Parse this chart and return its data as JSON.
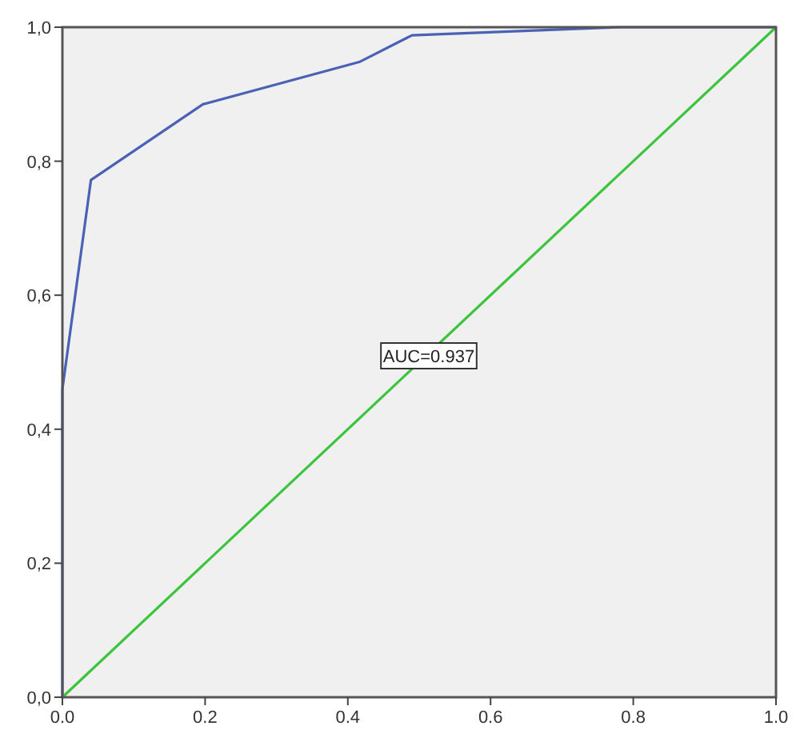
{
  "chart_data": {
    "type": "line",
    "xlim": [
      0,
      1
    ],
    "ylim": [
      0,
      1
    ],
    "xticks": [
      {
        "value": 0,
        "label": "0.0"
      },
      {
        "value": 0.2,
        "label": "0.2"
      },
      {
        "value": 0.4,
        "label": "0.4"
      },
      {
        "value": 0.6,
        "label": "0.6"
      },
      {
        "value": 0.8,
        "label": "0.8"
      },
      {
        "value": 1,
        "label": "1.0"
      }
    ],
    "yticks": [
      {
        "value": 0,
        "label": "0,0"
      },
      {
        "value": 0.2,
        "label": "0,2"
      },
      {
        "value": 0.4,
        "label": "0,4"
      },
      {
        "value": 0.6,
        "label": "0,6"
      },
      {
        "value": 0.8,
        "label": "0,8"
      },
      {
        "value": 1,
        "label": "1,0"
      }
    ],
    "series": [
      {
        "color": "#4a62b5",
        "x": [
          0,
          0,
          0.04,
          0.197,
          0.416,
          0.49,
          0.78,
          1
        ],
        "values": [
          0,
          0.46,
          0.772,
          0.885,
          0.948,
          0.988,
          1,
          1
        ]
      },
      {
        "color": "#3cc43c",
        "x": [
          0,
          1
        ],
        "values": [
          0,
          1
        ]
      }
    ],
    "annotations": [
      "AUC=0.937"
    ],
    "grid": false,
    "marker": "none",
    "line_style": "solid"
  }
}
